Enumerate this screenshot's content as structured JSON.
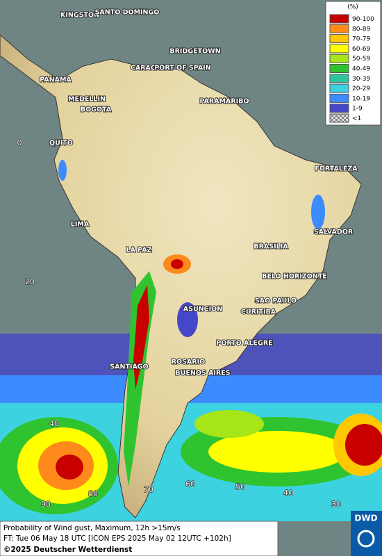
{
  "legend": {
    "unit": "(%)",
    "items": [
      {
        "label": "90-100",
        "color": "#c80000"
      },
      {
        "label": "80-89",
        "color": "#ff8a1c"
      },
      {
        "label": "70-79",
        "color": "#ffc800"
      },
      {
        "label": "60-69",
        "color": "#ffff00"
      },
      {
        "label": "50-59",
        "color": "#a6e619"
      },
      {
        "label": "40-49",
        "color": "#2fc42f"
      },
      {
        "label": "30-39",
        "color": "#2ec4a0"
      },
      {
        "label": "20-29",
        "color": "#3cd2e0"
      },
      {
        "label": "10-19",
        "color": "#3c8cff"
      },
      {
        "label": "1-9",
        "color": "#4646c8"
      },
      {
        "label": "<1",
        "color": "checker"
      }
    ]
  },
  "places": [
    "KINGSTON",
    "SANTO DOMINGO",
    "BRIDGETOWN",
    "CARACAS",
    "PORT OF SPAIN",
    "PANAMA",
    "MEDELLIN",
    "BOGOTA",
    "PARAMARIBO",
    "QUITO",
    "FORTALEZA",
    "LIMA",
    "SALVADOR",
    "BRASILIA",
    "LA PAZ",
    "BELO HORIZONTE",
    "ASUNCION",
    "SAO PAULO",
    "CURITIBA",
    "PORTO ALEGRE",
    "SANTIAGO",
    "ROSARIO",
    "BUENOS AIRES"
  ],
  "grid_labels": [
    0,
    20,
    40,
    90,
    80,
    70,
    60,
    50,
    40,
    30
  ],
  "footer": {
    "line1": "Probability of Wind gust, Maximum, 12h >15m/s",
    "line2": "FT: Tue 06 May 18 UTC [ICON EPS 2025 May 02 12UTC +102h]",
    "line3": "©2025 Deutscher Wetterdienst"
  },
  "logo": "DWD"
}
